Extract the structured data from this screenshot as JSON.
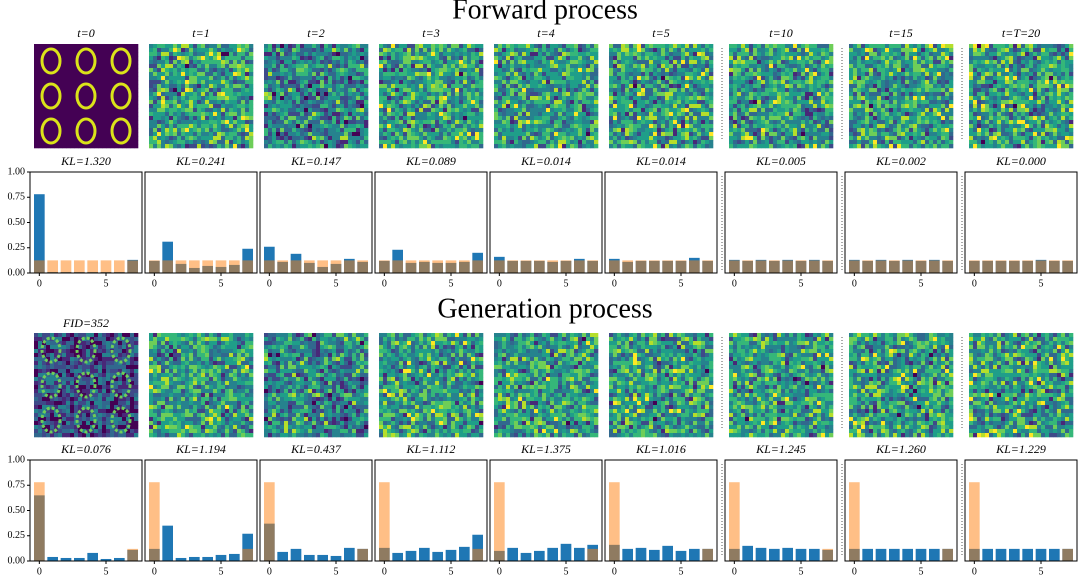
{
  "figure": {
    "forward_title": "Forward process",
    "generation_title": "Generation process",
    "forward_image_labels": [
      "t=0",
      "t=1",
      "t=2",
      "t=3",
      "t=4",
      "t=5",
      "t=10",
      "t=15",
      "t=T=20"
    ],
    "generation_image_labels": [
      "FID=352"
    ]
  },
  "chart_data": [
    {
      "type": "bar",
      "title": "KL=1.320",
      "x": [
        0,
        1,
        2,
        3,
        4,
        5,
        6,
        7
      ],
      "xlim": [
        -0.7,
        7.7
      ],
      "ylim": [
        0,
        1
      ],
      "xticks": [
        0,
        5
      ],
      "yticks": [
        {
          "value": 0,
          "label": "0.00"
        },
        {
          "value": 0.25,
          "label": "0.25"
        },
        {
          "value": 0.5,
          "label": "0.50"
        },
        {
          "value": 0.75,
          "label": "0.75"
        },
        {
          "value": 1,
          "label": "1.00"
        }
      ],
      "series": [
        {
          "color": "#1f77b4",
          "alpha": 1,
          "values": [
            0.78,
            0.01,
            0.01,
            0.01,
            0.01,
            0.01,
            0.01,
            0.13
          ]
        },
        {
          "color": "#ff7f0e",
          "alpha": 0.5,
          "values": [
            0.125,
            0.125,
            0.125,
            0.125,
            0.125,
            0.125,
            0.125,
            0.125
          ]
        }
      ]
    },
    {
      "type": "bar",
      "title": "KL=0.241",
      "x": [
        0,
        1,
        2,
        3,
        4,
        5,
        6,
        7
      ],
      "xlim": [
        -0.7,
        7.7
      ],
      "ylim": [
        0,
        1
      ],
      "xticks": [
        0,
        5
      ],
      "series": [
        {
          "color": "#1f77b4",
          "alpha": 1,
          "values": [
            0.12,
            0.31,
            0.09,
            0.05,
            0.07,
            0.06,
            0.08,
            0.24
          ]
        },
        {
          "color": "#ff7f0e",
          "alpha": 0.5,
          "values": [
            0.125,
            0.125,
            0.125,
            0.125,
            0.125,
            0.125,
            0.125,
            0.125
          ]
        }
      ]
    },
    {
      "type": "bar",
      "title": "KL=0.147",
      "x": [
        0,
        1,
        2,
        3,
        4,
        5,
        6,
        7
      ],
      "xlim": [
        -0.7,
        7.7
      ],
      "ylim": [
        0,
        1
      ],
      "xticks": [
        0,
        5
      ],
      "series": [
        {
          "color": "#1f77b4",
          "alpha": 1,
          "values": [
            0.26,
            0.11,
            0.19,
            0.1,
            0.06,
            0.09,
            0.14,
            0.11
          ]
        },
        {
          "color": "#ff7f0e",
          "alpha": 0.5,
          "values": [
            0.125,
            0.125,
            0.125,
            0.125,
            0.125,
            0.125,
            0.125,
            0.125
          ]
        }
      ]
    },
    {
      "type": "bar",
      "title": "KL=0.089",
      "x": [
        0,
        1,
        2,
        3,
        4,
        5,
        6,
        7
      ],
      "xlim": [
        -0.7,
        7.7
      ],
      "ylim": [
        0,
        1
      ],
      "xticks": [
        0,
        5
      ],
      "series": [
        {
          "color": "#1f77b4",
          "alpha": 1,
          "values": [
            0.12,
            0.23,
            0.1,
            0.11,
            0.1,
            0.1,
            0.11,
            0.2
          ]
        },
        {
          "color": "#ff7f0e",
          "alpha": 0.5,
          "values": [
            0.125,
            0.125,
            0.125,
            0.125,
            0.125,
            0.125,
            0.125,
            0.125
          ]
        }
      ]
    },
    {
      "type": "bar",
      "title": "KL=0.014",
      "x": [
        0,
        1,
        2,
        3,
        4,
        5,
        6,
        7
      ],
      "xlim": [
        -0.7,
        7.7
      ],
      "ylim": [
        0,
        1
      ],
      "xticks": [
        0,
        5
      ],
      "series": [
        {
          "color": "#1f77b4",
          "alpha": 1,
          "values": [
            0.16,
            0.12,
            0.12,
            0.12,
            0.11,
            0.12,
            0.14,
            0.12
          ]
        },
        {
          "color": "#ff7f0e",
          "alpha": 0.5,
          "values": [
            0.125,
            0.125,
            0.125,
            0.125,
            0.125,
            0.125,
            0.125,
            0.125
          ]
        }
      ]
    },
    {
      "type": "bar",
      "title": "KL=0.014",
      "x": [
        0,
        1,
        2,
        3,
        4,
        5,
        6,
        7
      ],
      "xlim": [
        -0.7,
        7.7
      ],
      "ylim": [
        0,
        1
      ],
      "xticks": [
        0,
        5
      ],
      "series": [
        {
          "color": "#1f77b4",
          "alpha": 1,
          "values": [
            0.14,
            0.11,
            0.12,
            0.12,
            0.12,
            0.12,
            0.15,
            0.12
          ]
        },
        {
          "color": "#ff7f0e",
          "alpha": 0.5,
          "values": [
            0.125,
            0.125,
            0.125,
            0.125,
            0.125,
            0.125,
            0.125,
            0.125
          ]
        }
      ]
    },
    {
      "type": "bar",
      "title": "KL=0.005",
      "x": [
        0,
        1,
        2,
        3,
        4,
        5,
        6,
        7
      ],
      "xlim": [
        -0.7,
        7.7
      ],
      "ylim": [
        0,
        1
      ],
      "xticks": [
        0,
        5
      ],
      "series": [
        {
          "color": "#1f77b4",
          "alpha": 1,
          "values": [
            0.13,
            0.12,
            0.13,
            0.12,
            0.13,
            0.12,
            0.13,
            0.12
          ]
        },
        {
          "color": "#ff7f0e",
          "alpha": 0.5,
          "values": [
            0.125,
            0.125,
            0.125,
            0.125,
            0.125,
            0.125,
            0.125,
            0.125
          ]
        }
      ]
    },
    {
      "type": "bar",
      "title": "KL=0.002",
      "x": [
        0,
        1,
        2,
        3,
        4,
        5,
        6,
        7
      ],
      "xlim": [
        -0.7,
        7.7
      ],
      "ylim": [
        0,
        1
      ],
      "xticks": [
        0,
        5
      ],
      "series": [
        {
          "color": "#1f77b4",
          "alpha": 1,
          "values": [
            0.13,
            0.12,
            0.13,
            0.12,
            0.13,
            0.12,
            0.13,
            0.12
          ]
        },
        {
          "color": "#ff7f0e",
          "alpha": 0.5,
          "values": [
            0.125,
            0.125,
            0.125,
            0.125,
            0.125,
            0.125,
            0.125,
            0.125
          ]
        }
      ]
    },
    {
      "type": "bar",
      "title": "KL=0.000",
      "x": [
        0,
        1,
        2,
        3,
        4,
        5,
        6,
        7
      ],
      "xlim": [
        -0.7,
        7.7
      ],
      "ylim": [
        0,
        1
      ],
      "xticks": [
        0,
        5
      ],
      "series": [
        {
          "color": "#1f77b4",
          "alpha": 1,
          "values": [
            0.12,
            0.12,
            0.12,
            0.12,
            0.12,
            0.13,
            0.12,
            0.12
          ]
        },
        {
          "color": "#ff7f0e",
          "alpha": 0.5,
          "values": [
            0.125,
            0.125,
            0.125,
            0.125,
            0.125,
            0.125,
            0.125,
            0.125
          ]
        }
      ]
    },
    {
      "type": "bar",
      "title": "KL=0.076",
      "x": [
        0,
        1,
        2,
        3,
        4,
        5,
        6,
        7
      ],
      "xlim": [
        -0.7,
        7.7
      ],
      "ylim": [
        0,
        1
      ],
      "xticks": [
        0,
        5
      ],
      "yticks": [
        {
          "value": 0,
          "label": "0.00"
        },
        {
          "value": 0.25,
          "label": "0.25"
        },
        {
          "value": 0.5,
          "label": "0.50"
        },
        {
          "value": 0.75,
          "label": "0.75"
        },
        {
          "value": 1,
          "label": "1.00"
        }
      ],
      "series": [
        {
          "color": "#1f77b4",
          "alpha": 1,
          "values": [
            0.65,
            0.04,
            0.03,
            0.03,
            0.08,
            0.02,
            0.03,
            0.11
          ]
        },
        {
          "color": "#ff7f0e",
          "alpha": 0.5,
          "values": [
            0.78,
            0,
            0,
            0,
            0,
            0,
            0,
            0.12
          ]
        }
      ]
    },
    {
      "type": "bar",
      "title": "KL=1.194",
      "x": [
        0,
        1,
        2,
        3,
        4,
        5,
        6,
        7
      ],
      "xlim": [
        -0.7,
        7.7
      ],
      "ylim": [
        0,
        1
      ],
      "xticks": [
        0,
        5
      ],
      "series": [
        {
          "color": "#1f77b4",
          "alpha": 1,
          "values": [
            0.12,
            0.35,
            0.03,
            0.04,
            0.04,
            0.06,
            0.07,
            0.27
          ]
        },
        {
          "color": "#ff7f0e",
          "alpha": 0.5,
          "values": [
            0.78,
            0,
            0,
            0,
            0,
            0,
            0,
            0.12
          ]
        }
      ]
    },
    {
      "type": "bar",
      "title": "KL=0.437",
      "x": [
        0,
        1,
        2,
        3,
        4,
        5,
        6,
        7
      ],
      "xlim": [
        -0.7,
        7.7
      ],
      "ylim": [
        0,
        1
      ],
      "xticks": [
        0,
        5
      ],
      "series": [
        {
          "color": "#1f77b4",
          "alpha": 1,
          "values": [
            0.37,
            0.09,
            0.12,
            0.06,
            0.06,
            0.05,
            0.13,
            0.12
          ]
        },
        {
          "color": "#ff7f0e",
          "alpha": 0.5,
          "values": [
            0.78,
            0,
            0,
            0,
            0,
            0,
            0,
            0.12
          ]
        }
      ]
    },
    {
      "type": "bar",
      "title": "KL=1.112",
      "x": [
        0,
        1,
        2,
        3,
        4,
        5,
        6,
        7
      ],
      "xlim": [
        -0.7,
        7.7
      ],
      "ylim": [
        0,
        1
      ],
      "xticks": [
        0,
        5
      ],
      "series": [
        {
          "color": "#1f77b4",
          "alpha": 1,
          "values": [
            0.13,
            0.08,
            0.1,
            0.13,
            0.09,
            0.11,
            0.14,
            0.26
          ]
        },
        {
          "color": "#ff7f0e",
          "alpha": 0.5,
          "values": [
            0.78,
            0,
            0,
            0,
            0,
            0,
            0,
            0.12
          ]
        }
      ]
    },
    {
      "type": "bar",
      "title": "KL=1.375",
      "x": [
        0,
        1,
        2,
        3,
        4,
        5,
        6,
        7
      ],
      "xlim": [
        -0.7,
        7.7
      ],
      "ylim": [
        0,
        1
      ],
      "xticks": [
        0,
        5
      ],
      "series": [
        {
          "color": "#1f77b4",
          "alpha": 1,
          "values": [
            0.1,
            0.13,
            0.08,
            0.1,
            0.13,
            0.17,
            0.13,
            0.16
          ]
        },
        {
          "color": "#ff7f0e",
          "alpha": 0.5,
          "values": [
            0.78,
            0,
            0,
            0,
            0,
            0,
            0,
            0.12
          ]
        }
      ]
    },
    {
      "type": "bar",
      "title": "KL=1.016",
      "x": [
        0,
        1,
        2,
        3,
        4,
        5,
        6,
        7
      ],
      "xlim": [
        -0.7,
        7.7
      ],
      "ylim": [
        0,
        1
      ],
      "xticks": [
        0,
        5
      ],
      "series": [
        {
          "color": "#1f77b4",
          "alpha": 1,
          "values": [
            0.16,
            0.12,
            0.13,
            0.11,
            0.15,
            0.1,
            0.12,
            0.12
          ]
        },
        {
          "color": "#ff7f0e",
          "alpha": 0.5,
          "values": [
            0.78,
            0,
            0,
            0,
            0,
            0,
            0,
            0.12
          ]
        }
      ]
    },
    {
      "type": "bar",
      "title": "KL=1.245",
      "x": [
        0,
        1,
        2,
        3,
        4,
        5,
        6,
        7
      ],
      "xlim": [
        -0.7,
        7.7
      ],
      "ylim": [
        0,
        1
      ],
      "xticks": [
        0,
        5
      ],
      "series": [
        {
          "color": "#1f77b4",
          "alpha": 1,
          "values": [
            0.12,
            0.15,
            0.13,
            0.12,
            0.13,
            0.12,
            0.12,
            0.11
          ]
        },
        {
          "color": "#ff7f0e",
          "alpha": 0.5,
          "values": [
            0.78,
            0,
            0,
            0,
            0,
            0,
            0,
            0.12
          ]
        }
      ]
    },
    {
      "type": "bar",
      "title": "KL=1.260",
      "x": [
        0,
        1,
        2,
        3,
        4,
        5,
        6,
        7
      ],
      "xlim": [
        -0.7,
        7.7
      ],
      "ylim": [
        0,
        1
      ],
      "xticks": [
        0,
        5
      ],
      "series": [
        {
          "color": "#1f77b4",
          "alpha": 1,
          "values": [
            0.12,
            0.12,
            0.12,
            0.12,
            0.12,
            0.12,
            0.12,
            0.12
          ]
        },
        {
          "color": "#ff7f0e",
          "alpha": 0.5,
          "values": [
            0.78,
            0,
            0,
            0,
            0,
            0,
            0,
            0.12
          ]
        }
      ]
    },
    {
      "type": "bar",
      "title": "KL=1.229",
      "x": [
        0,
        1,
        2,
        3,
        4,
        5,
        6,
        7
      ],
      "xlim": [
        -0.7,
        7.7
      ],
      "ylim": [
        0,
        1
      ],
      "xticks": [
        0,
        5
      ],
      "series": [
        {
          "color": "#1f77b4",
          "alpha": 1,
          "values": [
            0.12,
            0.12,
            0.12,
            0.12,
            0.12,
            0.12,
            0.12,
            0.12
          ]
        },
        {
          "color": "#ff7f0e",
          "alpha": 0.5,
          "values": [
            0.78,
            0,
            0,
            0,
            0,
            0,
            0,
            0.12
          ]
        }
      ]
    }
  ]
}
